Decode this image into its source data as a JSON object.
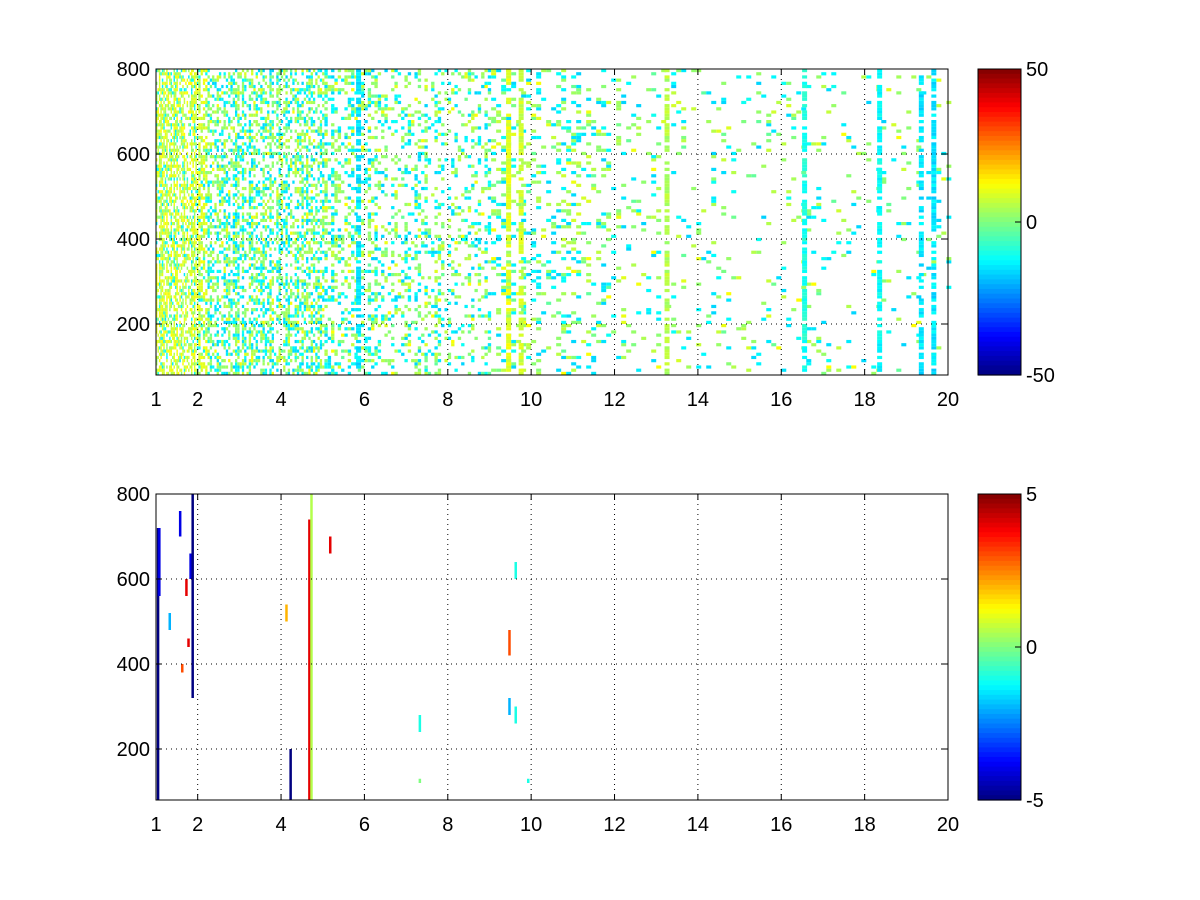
{
  "chart_data": [
    {
      "type": "heatmap",
      "title": "",
      "xlabel": "",
      "ylabel": "",
      "xlim": [
        1,
        20
      ],
      "ylim": [
        80,
        800
      ],
      "x_ticks": [
        "1",
        "2",
        "4",
        "6",
        "8",
        "10",
        "12",
        "14",
        "16",
        "18",
        "20"
      ],
      "y_ticks": [
        "200",
        "400",
        "600",
        "800"
      ],
      "grid": true,
      "colormap": "jet",
      "colorbar": {
        "clim": [
          -50,
          50
        ],
        "tick_labels": [
          "50",
          "0",
          "-50"
        ]
      },
      "density_profile": [
        {
          "x": 1,
          "fill": 0.85
        },
        {
          "x": 2,
          "fill": 0.75
        },
        {
          "x": 4,
          "fill": 0.6
        },
        {
          "x": 6,
          "fill": 0.4
        },
        {
          "x": 10,
          "fill": 0.28
        },
        {
          "x": 14,
          "fill": 0.1
        },
        {
          "x": 20,
          "fill": 0.08
        }
      ],
      "strong_columns": [
        {
          "x": 5.8,
          "value": -15
        },
        {
          "x": 9.4,
          "value": 10
        },
        {
          "x": 9.7,
          "value": 8
        },
        {
          "x": 13.2,
          "value": 5
        },
        {
          "x": 16.5,
          "value": -10
        },
        {
          "x": 18.3,
          "value": -12
        },
        {
          "x": 19.3,
          "value": -15
        },
        {
          "x": 19.6,
          "value": -15
        }
      ]
    },
    {
      "type": "heatmap",
      "title": "",
      "xlabel": "",
      "ylabel": "",
      "xlim": [
        1,
        20
      ],
      "ylim": [
        80,
        800
      ],
      "x_ticks": [
        "1",
        "2",
        "4",
        "6",
        "8",
        "10",
        "12",
        "14",
        "16",
        "18",
        "20"
      ],
      "y_ticks": [
        "200",
        "400",
        "600",
        "800"
      ],
      "grid": true,
      "colormap": "jet",
      "colorbar": {
        "clim": [
          -5,
          5
        ],
        "tick_labels": [
          "5",
          "0",
          "-5"
        ]
      },
      "segments": [
        {
          "x": 1.02,
          "y0": 80,
          "y1": 720,
          "value": -5
        },
        {
          "x": 1.05,
          "y0": 560,
          "y1": 720,
          "value": -4
        },
        {
          "x": 1.3,
          "y0": 480,
          "y1": 520,
          "value": -2
        },
        {
          "x": 1.55,
          "y0": 700,
          "y1": 760,
          "value": -4
        },
        {
          "x": 1.6,
          "y0": 380,
          "y1": 400,
          "value": 3
        },
        {
          "x": 1.7,
          "y0": 560,
          "y1": 600,
          "value": 4
        },
        {
          "x": 1.75,
          "y0": 440,
          "y1": 460,
          "value": 4
        },
        {
          "x": 1.8,
          "y0": 600,
          "y1": 660,
          "value": -4
        },
        {
          "x": 1.85,
          "y0": 320,
          "y1": 800,
          "value": -5
        },
        {
          "x": 4.1,
          "y0": 500,
          "y1": 540,
          "value": 2
        },
        {
          "x": 4.2,
          "y0": 80,
          "y1": 200,
          "value": -5
        },
        {
          "x": 4.65,
          "y0": 80,
          "y1": 740,
          "value": 4
        },
        {
          "x": 4.7,
          "y0": 80,
          "y1": 800,
          "value": 0.5
        },
        {
          "x": 5.15,
          "y0": 660,
          "y1": 700,
          "value": 4
        },
        {
          "x": 7.3,
          "y0": 240,
          "y1": 280,
          "value": -1
        },
        {
          "x": 7.3,
          "y0": 120,
          "y1": 130,
          "value": 0
        },
        {
          "x": 9.45,
          "y0": 420,
          "y1": 480,
          "value": 3
        },
        {
          "x": 9.45,
          "y0": 280,
          "y1": 320,
          "value": -2
        },
        {
          "x": 9.6,
          "y0": 600,
          "y1": 640,
          "value": -1
        },
        {
          "x": 9.6,
          "y0": 260,
          "y1": 300,
          "value": -1
        },
        {
          "x": 9.9,
          "y0": 120,
          "y1": 130,
          "value": -1
        }
      ]
    }
  ]
}
